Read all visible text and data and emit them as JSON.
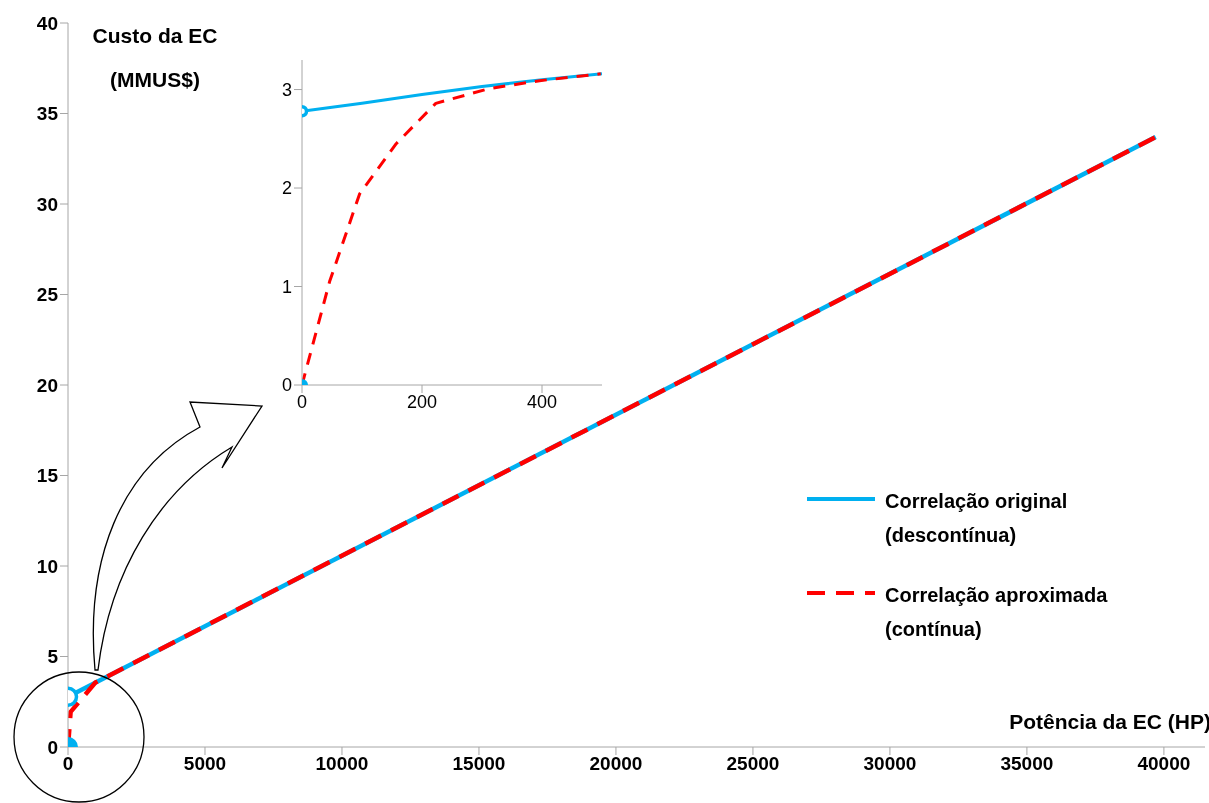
{
  "chart_data": [
    {
      "type": "line",
      "xlabel": "Potência da EC (HP)",
      "ylabel": "Custo da EC\n(MMUS$)",
      "xlim": [
        0,
        41500
      ],
      "xticks": [
        0,
        5000,
        10000,
        15000,
        20000,
        25000,
        30000,
        35000,
        40000
      ],
      "ylim": [
        0,
        40
      ],
      "yticks": [
        0,
        5,
        10,
        15,
        20,
        25,
        30,
        35,
        40
      ],
      "legend": "right",
      "series": [
        {
          "name": "Correlação original\n(descontínua)",
          "color": "#00b0f0",
          "line_style": "solid",
          "x": [
            0,
            39700
          ],
          "values": [
            2.78,
            33.7
          ]
        },
        {
          "name": "Correlação aproximada\n(contínua)",
          "color": "#ff0000",
          "line_style": "dashed",
          "x": [
            0,
            96,
            1000,
            39700
          ],
          "values": [
            0,
            1.94,
            3.56,
            33.7
          ]
        },
        {
          "color": "#00b0f0",
          "type": "scatter",
          "marker": "circle",
          "x": [
            0
          ],
          "values": [
            2.78
          ]
        },
        {
          "color": "#00b0f0",
          "type": "scatter",
          "marker": "circle",
          "x": [
            0
          ],
          "values": [
            0
          ]
        }
      ]
    },
    {
      "type": "line",
      "xlim": [
        0,
        500
      ],
      "xticks": [
        0,
        200,
        400
      ],
      "ylim": [
        0,
        3.3
      ],
      "yticks": [
        0,
        1,
        2,
        3
      ],
      "series": [
        {
          "color": "#00b0f0",
          "line_style": "solid",
          "x": [
            0,
            50,
            100,
            200,
            300,
            400,
            500
          ],
          "values": [
            2.78,
            2.82,
            2.86,
            2.95,
            3.03,
            3.1,
            3.16
          ]
        },
        {
          "color": "#ff0000",
          "line_style": "dashed",
          "x": [
            0,
            46,
            96,
            157,
            223,
            312,
            396,
            498
          ],
          "values": [
            0,
            1.05,
            1.94,
            2.45,
            2.86,
            3.01,
            3.09,
            3.16
          ]
        },
        {
          "color": "#00b0f0",
          "type": "scatter",
          "marker": "circle",
          "x": [
            0
          ],
          "values": [
            2.78
          ]
        },
        {
          "color": "#00b0f0",
          "type": "scatter",
          "marker": "circle",
          "x": [
            0
          ],
          "values": [
            0
          ]
        }
      ]
    }
  ]
}
